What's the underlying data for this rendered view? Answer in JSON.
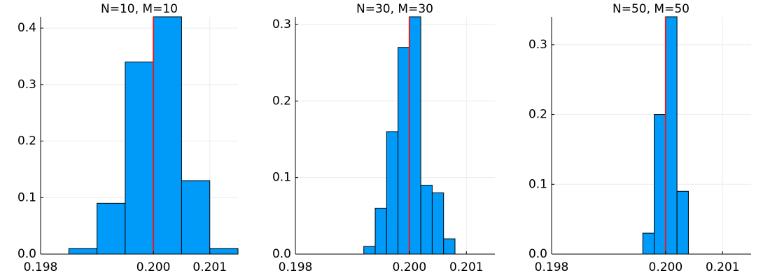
{
  "chart_data": [
    {
      "type": "bar",
      "title": "N=10, M=10",
      "xlabel": "",
      "ylabel": "",
      "xlim": [
        0.198,
        0.2015
      ],
      "ylim": [
        0,
        0.42
      ],
      "xticks": [
        0.198,
        0.2,
        0.201
      ],
      "xtick_labels": [
        "0.198",
        "0.200",
        "0.201"
      ],
      "yticks": [
        0.0,
        0.1,
        0.2,
        0.3,
        0.4
      ],
      "ytick_labels": [
        "0.0",
        "0.1",
        "0.2",
        "0.3",
        "0.4"
      ],
      "bin_edges": [
        0.1985,
        0.199,
        0.1995,
        0.2,
        0.2005,
        0.201,
        0.2015
      ],
      "values": [
        0.01,
        0.09,
        0.34,
        0.42,
        0.13,
        0.01
      ],
      "vline": 0.2,
      "grid": true,
      "bar_color": "#009af9",
      "vline_color": "#e41a1c"
    },
    {
      "type": "bar",
      "title": "N=30, M=30",
      "xlabel": "",
      "ylabel": "",
      "xlim": [
        0.198,
        0.2015
      ],
      "ylim": [
        0,
        0.31
      ],
      "xticks": [
        0.198,
        0.2,
        0.201
      ],
      "xtick_labels": [
        "0.198",
        "0.200",
        "0.201"
      ],
      "yticks": [
        0.0,
        0.1,
        0.2,
        0.3
      ],
      "ytick_labels": [
        "0.0",
        "0.1",
        "0.2",
        "0.3"
      ],
      "bin_edges": [
        0.1992,
        0.1994,
        0.1996,
        0.1998,
        0.2,
        0.2002,
        0.2004,
        0.2006,
        0.2008
      ],
      "values": [
        0.01,
        0.06,
        0.16,
        0.27,
        0.31,
        0.09,
        0.08,
        0.02
      ],
      "vline": 0.2,
      "grid": true,
      "bar_color": "#009af9",
      "vline_color": "#e41a1c"
    },
    {
      "type": "bar",
      "title": "N=50, M=50",
      "xlabel": "",
      "ylabel": "",
      "xlim": [
        0.198,
        0.2015
      ],
      "ylim": [
        0,
        0.34
      ],
      "xticks": [
        0.198,
        0.2,
        0.201
      ],
      "xtick_labels": [
        "0.198",
        "0.200",
        "0.201"
      ],
      "yticks": [
        0.0,
        0.1,
        0.2,
        0.3
      ],
      "ytick_labels": [
        "0.0",
        "0.1",
        "0.2",
        "0.3"
      ],
      "bin_edges": [
        0.1996,
        0.1998,
        0.2,
        0.2002,
        0.2004
      ],
      "values": [
        0.03,
        0.2,
        0.34,
        0.09
      ],
      "vline": 0.2,
      "grid": true,
      "bar_color": "#009af9",
      "vline_color": "#e41a1c"
    }
  ]
}
